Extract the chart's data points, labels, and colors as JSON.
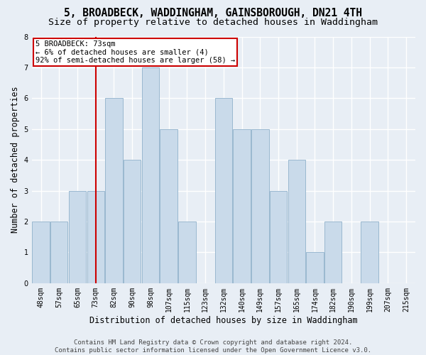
{
  "title_line1": "5, BROADBECK, WADDINGHAM, GAINSBOROUGH, DN21 4TH",
  "title_line2": "Size of property relative to detached houses in Waddingham",
  "xlabel": "Distribution of detached houses by size in Waddingham",
  "ylabel": "Number of detached properties",
  "bins": [
    "48sqm",
    "57sqm",
    "65sqm",
    "73sqm",
    "82sqm",
    "90sqm",
    "98sqm",
    "107sqm",
    "115sqm",
    "123sqm",
    "132sqm",
    "140sqm",
    "149sqm",
    "157sqm",
    "165sqm",
    "174sqm",
    "182sqm",
    "190sqm",
    "199sqm",
    "207sqm",
    "215sqm"
  ],
  "values": [
    2,
    2,
    3,
    3,
    6,
    4,
    7,
    5,
    2,
    0,
    6,
    5,
    5,
    3,
    4,
    1,
    2,
    0,
    2,
    0,
    0
  ],
  "bar_color": "#c9daea",
  "bar_edge_color": "#9ab8d0",
  "highlight_index": 3,
  "highlight_line_color": "#cc0000",
  "annotation_line1": "5 BROADBECK: 73sqm",
  "annotation_line2": "← 6% of detached houses are smaller (4)",
  "annotation_line3": "92% of semi-detached houses are larger (58) →",
  "annotation_box_color": "#ffffff",
  "annotation_box_edge_color": "#cc0000",
  "ylim": [
    0,
    8
  ],
  "yticks": [
    0,
    1,
    2,
    3,
    4,
    5,
    6,
    7,
    8
  ],
  "background_color": "#e8eef5",
  "plot_bg_color": "#e8eef5",
  "grid_color": "#ffffff",
  "footer_line1": "Contains HM Land Registry data © Crown copyright and database right 2024.",
  "footer_line2": "Contains public sector information licensed under the Open Government Licence v3.0.",
  "title_fontsize": 10.5,
  "subtitle_fontsize": 9.5,
  "tick_fontsize": 7,
  "ylabel_fontsize": 8.5,
  "xlabel_fontsize": 8.5,
  "annotation_fontsize": 7.5,
  "footer_fontsize": 6.5
}
